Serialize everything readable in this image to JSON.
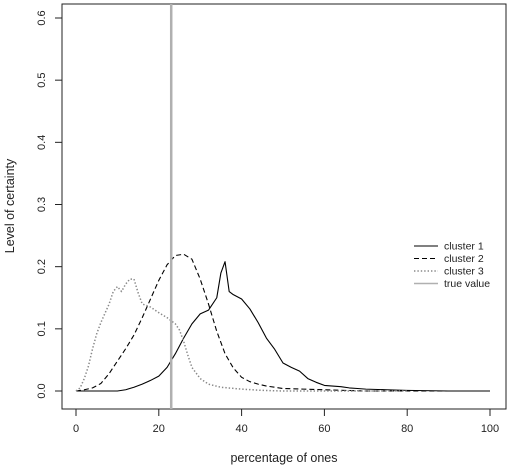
{
  "chart_data": {
    "type": "line",
    "title": "",
    "xlabel": "percentage of ones",
    "ylabel": "Level of certainty",
    "xlim": [
      0,
      100
    ],
    "ylim": [
      0,
      0.6
    ],
    "xticks": [
      0,
      20,
      40,
      60,
      80,
      100
    ],
    "xtick_labels": [
      "0",
      "20",
      "40",
      "60",
      "80",
      "100"
    ],
    "yticks": [
      0.0,
      0.1,
      0.2,
      0.3,
      0.4,
      0.5,
      0.6
    ],
    "ytick_labels": [
      "0.0",
      "0.1",
      "0.2",
      "0.3",
      "0.4",
      "0.5",
      "0.6"
    ],
    "grid": false,
    "legend_position": "right",
    "true_value": 23,
    "series": [
      {
        "name": "cluster 1",
        "style": "solid",
        "color": "#000000",
        "x": [
          0,
          5,
          10,
          12,
          14,
          16,
          18,
          20,
          22,
          24,
          26,
          28,
          30,
          32,
          34,
          35,
          36,
          37,
          38,
          40,
          42,
          44,
          46,
          48,
          50,
          52,
          54,
          56,
          58,
          60,
          62,
          64,
          66,
          68,
          70,
          75,
          80,
          90,
          100
        ],
        "y": [
          0,
          0,
          0,
          0.002,
          0.006,
          0.011,
          0.017,
          0.024,
          0.038,
          0.06,
          0.085,
          0.108,
          0.124,
          0.13,
          0.15,
          0.19,
          0.208,
          0.16,
          0.155,
          0.148,
          0.132,
          0.11,
          0.085,
          0.067,
          0.045,
          0.038,
          0.032,
          0.02,
          0.014,
          0.009,
          0.008,
          0.007,
          0.005,
          0.004,
          0.003,
          0.002,
          0.001,
          0,
          0
        ]
      },
      {
        "name": "cluster 2",
        "style": "dashed",
        "color": "#000000",
        "x": [
          0,
          2,
          4,
          6,
          8,
          10,
          12,
          14,
          16,
          18,
          20,
          22,
          24,
          26,
          28,
          30,
          32,
          34,
          36,
          38,
          40,
          42,
          44,
          46,
          48,
          50,
          55,
          60,
          65,
          70,
          80,
          90,
          100
        ],
        "y": [
          0,
          0.002,
          0.005,
          0.012,
          0.028,
          0.048,
          0.068,
          0.09,
          0.118,
          0.148,
          0.178,
          0.203,
          0.218,
          0.22,
          0.212,
          0.18,
          0.14,
          0.096,
          0.06,
          0.037,
          0.022,
          0.015,
          0.011,
          0.008,
          0.006,
          0.004,
          0.003,
          0.002,
          0.001,
          0,
          0,
          0,
          0
        ]
      },
      {
        "name": "cluster 3",
        "style": "dotted",
        "color": "#888888",
        "x": [
          0,
          1,
          2,
          3,
          4,
          5,
          6,
          7,
          8,
          9,
          10,
          11,
          12,
          13,
          14,
          15,
          16,
          18,
          20,
          22,
          24,
          25,
          26,
          27,
          28,
          30,
          32,
          35,
          40,
          45,
          50,
          60,
          70,
          80
        ],
        "y": [
          0,
          0.005,
          0.02,
          0.04,
          0.068,
          0.092,
          0.11,
          0.125,
          0.14,
          0.16,
          0.168,
          0.16,
          0.172,
          0.18,
          0.18,
          0.158,
          0.14,
          0.135,
          0.126,
          0.118,
          0.108,
          0.098,
          0.08,
          0.058,
          0.038,
          0.02,
          0.011,
          0.006,
          0.003,
          0.001,
          0,
          0,
          0,
          0
        ]
      },
      {
        "name": "true value",
        "style": "vline",
        "color": "#b0b0b0"
      }
    ]
  }
}
